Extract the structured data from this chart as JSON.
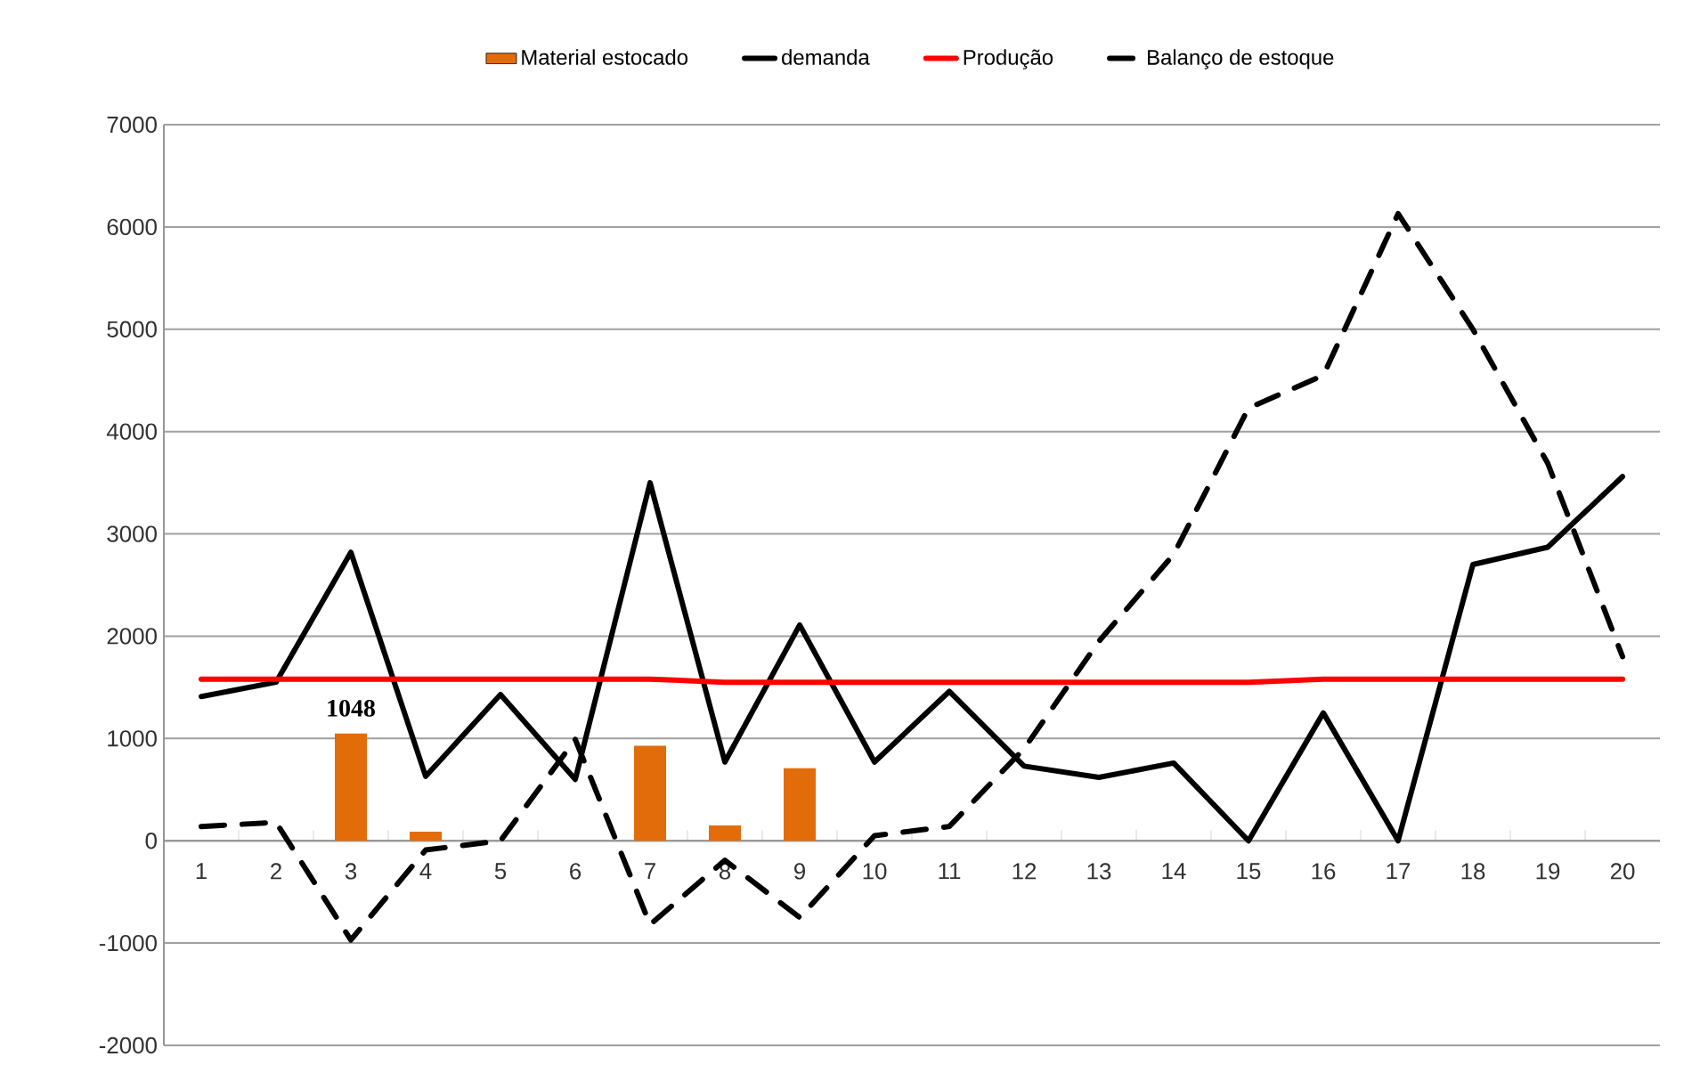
{
  "chart_data": {
    "type": "bar",
    "categories": [
      "1",
      "2",
      "3",
      "4",
      "5",
      "6",
      "7",
      "8",
      "9",
      "10",
      "11",
      "12",
      "13",
      "14",
      "15",
      "16",
      "17",
      "18",
      "19",
      "20"
    ],
    "series": [
      {
        "name": "Material estocado",
        "color": "#e36c0a",
        "values": [
          null,
          null,
          1048,
          90,
          null,
          null,
          930,
          150,
          710,
          null,
          null,
          null,
          null,
          null,
          null,
          null,
          null,
          null,
          null,
          null
        ],
        "value_labels": [
          null,
          null,
          "1048",
          null,
          null,
          null,
          null,
          null,
          null,
          null,
          null,
          null,
          null,
          null,
          null,
          null,
          null,
          null,
          null,
          null
        ]
      },
      {
        "name": "demanda",
        "type": "line",
        "color": "#000000",
        "line_style": "solid",
        "values": [
          1410,
          1550,
          2820,
          630,
          1430,
          600,
          3500,
          770,
          2110,
          770,
          1460,
          730,
          620,
          760,
          0,
          1250,
          0,
          2700,
          2870,
          3560
        ]
      },
      {
        "name": "Produção",
        "type": "line",
        "color": "#ff0000",
        "line_style": "solid",
        "values": [
          1580,
          1580,
          1580,
          1580,
          1580,
          1580,
          1580,
          1550,
          1550,
          1550,
          1550,
          1550,
          1550,
          1550,
          1550,
          1580,
          1580,
          1580,
          1580,
          1580
        ]
      },
      {
        "name": "Balanço de estoque",
        "type": "line",
        "color": "#000000",
        "line_style": "dashed",
        "values": [
          140,
          180,
          -970,
          -90,
          0,
          990,
          -820,
          -190,
          -750,
          50,
          140,
          900,
          1950,
          2800,
          4230,
          4550,
          6130,
          5000,
          3690,
          1800
        ]
      }
    ],
    "ylim": [
      -2000,
      7000
    ],
    "yticks": [
      -2000,
      -1000,
      0,
      1000,
      2000,
      3000,
      4000,
      5000,
      6000,
      7000
    ],
    "grid": "y",
    "legend": "top"
  }
}
